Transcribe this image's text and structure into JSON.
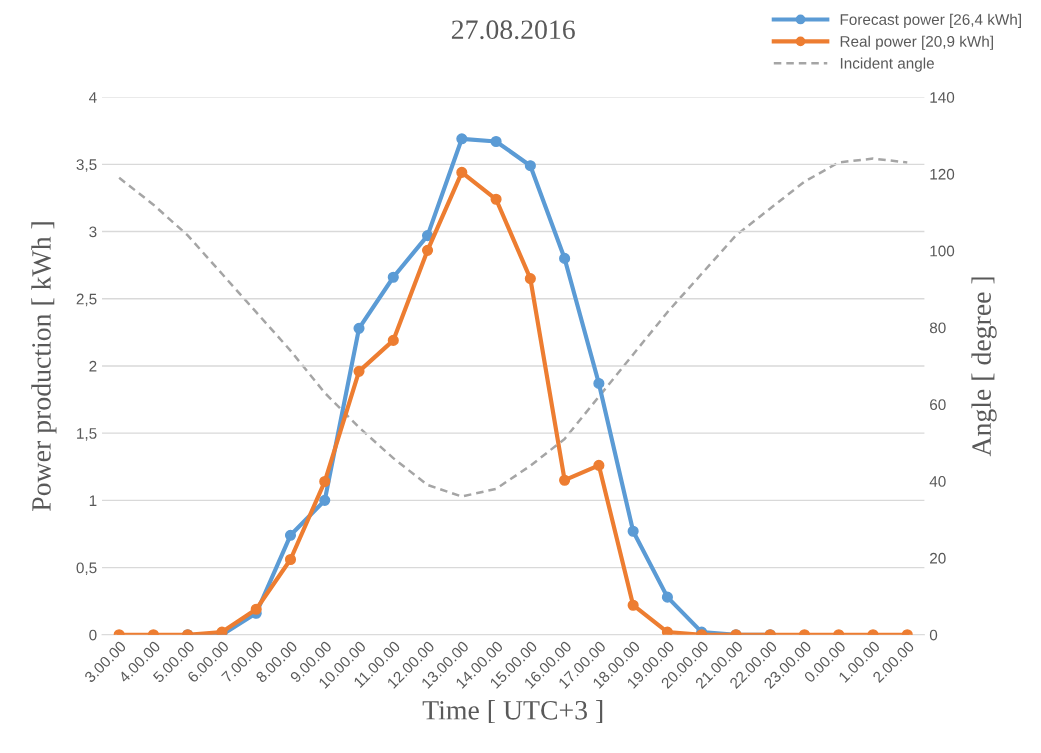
{
  "chart_data": {
    "type": "line",
    "title": "27.08.2016",
    "xlabel": "Time [ UTC+3 ]",
    "ylabel": "Power production [ kWh ]",
    "y2label": "Angle [ degree ]",
    "categories": [
      "3.00.00",
      "4.00.00",
      "5.00.00",
      "6.00.00",
      "7.00.00",
      "8.00.00",
      "9.00.00",
      "10.00.00",
      "11.00.00",
      "12.00.00",
      "13.00.00",
      "14.00.00",
      "15.00.00",
      "16.00.00",
      "17.00.00",
      "18.00.00",
      "19.00.00",
      "20.00.00",
      "21.00.00",
      "22.00.00",
      "23.00.00",
      "0.00.00",
      "1.00.00",
      "2.00.00"
    ],
    "series": [
      {
        "name": "Forecast power [26,4 kWh]",
        "color": "#5b9bd5",
        "marker": "circle",
        "values": [
          null,
          null,
          0,
          0,
          0.16,
          0.74,
          1.0,
          2.28,
          2.66,
          2.97,
          3.69,
          3.67,
          3.49,
          2.8,
          1.87,
          0.77,
          0.28,
          0.02,
          0,
          0,
          null,
          null,
          null,
          null
        ]
      },
      {
        "name": "Real power [20,9 kWh]",
        "color": "#ed7d31",
        "marker": "circle",
        "values": [
          0,
          0,
          0,
          0.02,
          0.19,
          0.56,
          1.14,
          1.96,
          2.19,
          2.86,
          3.44,
          3.24,
          2.65,
          1.15,
          1.26,
          0.22,
          0.02,
          0,
          0,
          0,
          0,
          0,
          0,
          0
        ]
      },
      {
        "name": "Incident angle",
        "color": "#a5a5a5",
        "axis": "y2",
        "marker": "none",
        "line_style": "dashed",
        "values": [
          119,
          112,
          104,
          94,
          84,
          74,
          63,
          54,
          46,
          39,
          36,
          38,
          44,
          51,
          62,
          73,
          84,
          94,
          104,
          111,
          118,
          123,
          124,
          123
        ]
      }
    ],
    "ylim": [
      0,
      4
    ],
    "yticks": [
      0,
      {
        "value": 0.5,
        "label": "0,5"
      },
      1,
      {
        "value": 1.5,
        "label": "1,5"
      },
      2,
      {
        "value": 2.5,
        "label": "2,5"
      },
      3,
      {
        "value": 3.5,
        "label": "3,5"
      },
      4
    ],
    "y2lim": [
      0,
      140
    ],
    "y2ticks": [
      0,
      20,
      40,
      60,
      80,
      100,
      120,
      140
    ],
    "grid": "y",
    "legend": "top right"
  }
}
